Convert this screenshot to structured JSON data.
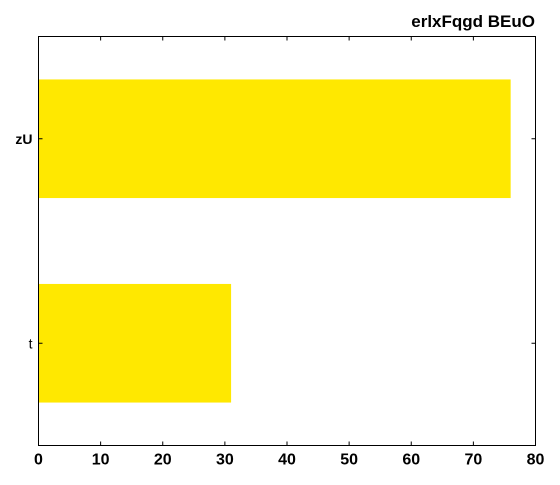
{
  "chart_data": {
    "type": "bar",
    "orientation": "horizontal",
    "title": "erlxFqgd BEuO",
    "xlabel": "",
    "ylabel": "",
    "categories": [
      "zU",
      "t"
    ],
    "category_label_bold": [
      true,
      false
    ],
    "values": [
      76,
      31
    ],
    "xlim": [
      0,
      80
    ],
    "xticks": [
      0,
      10,
      20,
      30,
      40,
      50,
      60,
      70,
      80
    ],
    "grid": false,
    "legend": "none",
    "bar_color": "#ffe800"
  }
}
